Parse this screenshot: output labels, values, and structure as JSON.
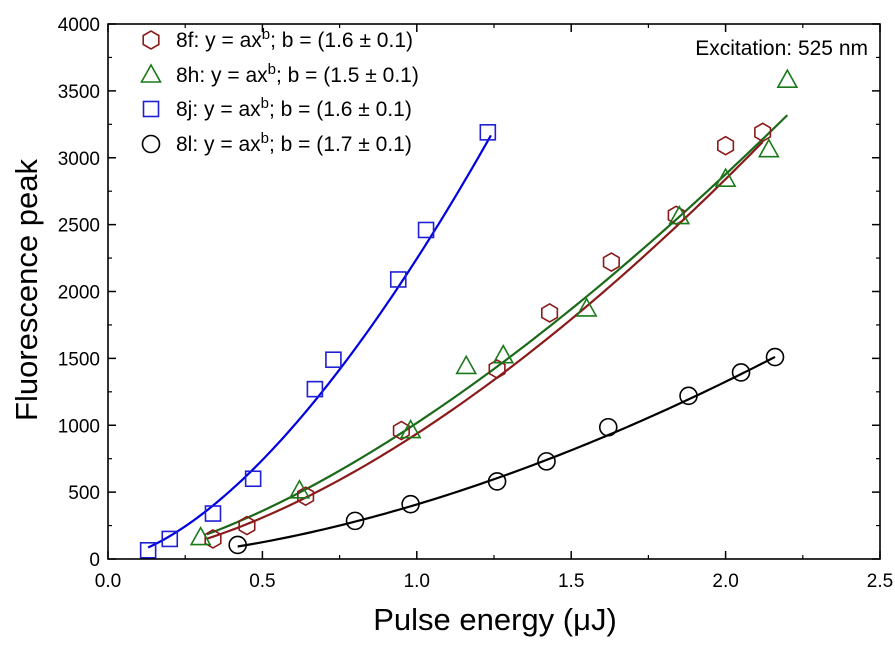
{
  "chart_data": {
    "type": "scatter",
    "xlabel": "Pulse energy (μJ)",
    "ylabel": "Fluorescence peak",
    "xlim": [
      0.0,
      2.5
    ],
    "ylim": [
      0,
      4000
    ],
    "x_ticks": [
      0.0,
      0.5,
      1.0,
      1.5,
      2.0,
      2.5
    ],
    "x_tick_labels": [
      "0.0",
      "0.5",
      "1.0",
      "1.5",
      "2.0",
      "2.5"
    ],
    "y_ticks": [
      0,
      500,
      1000,
      1500,
      2000,
      2500,
      3000,
      3500,
      4000
    ],
    "y_tick_labels": [
      "0",
      "500",
      "1000",
      "1500",
      "2000",
      "2500",
      "3000",
      "3500",
      "4000"
    ],
    "annotation": "Excitation: 525 nm",
    "legend_position": "top-left",
    "grid": false,
    "series": [
      {
        "name": "8f",
        "label_prefix": "8f:",
        "fit_text": "y = ax",
        "fit_exp": "b",
        "fit_suffix": "; b = (1.6 ± 0.1)",
        "marker": "hexagon",
        "color": "#8b1a1a",
        "fit_color": "#8b1a1a",
        "fit_a": 937,
        "fit_b": 1.6,
        "fit_range": [
          0.32,
          2.12
        ],
        "points": [
          [
            0.34,
            150
          ],
          [
            0.45,
            250
          ],
          [
            0.64,
            470
          ],
          [
            0.95,
            960
          ],
          [
            1.26,
            1420
          ],
          [
            1.43,
            1840
          ],
          [
            1.63,
            2220
          ],
          [
            1.84,
            2570
          ],
          [
            2.0,
            3090
          ],
          [
            2.12,
            3190
          ]
        ]
      },
      {
        "name": "8h",
        "label_prefix": "8h:",
        "fit_text": "y = ax",
        "fit_exp": "b",
        "fit_suffix": "; b = (1.5 ± 0.1)",
        "marker": "triangle",
        "color": "#1a7a1a",
        "fit_color": "#1a6a1a",
        "fit_a": 1017,
        "fit_b": 1.5,
        "fit_range": [
          0.32,
          2.2
        ],
        "points": [
          [
            0.3,
            160
          ],
          [
            0.62,
            510
          ],
          [
            0.98,
            960
          ],
          [
            1.16,
            1440
          ],
          [
            1.28,
            1520
          ],
          [
            1.55,
            1870
          ],
          [
            1.85,
            2560
          ],
          [
            2.0,
            2840
          ],
          [
            2.14,
            3060
          ],
          [
            2.2,
            3580
          ]
        ]
      },
      {
        "name": "8j",
        "label_prefix": "8j:",
        "fit_text": "y = ax",
        "fit_exp": "b",
        "fit_suffix": "; b = (1.6 ± 0.1)",
        "marker": "square",
        "color": "#1f1fd6",
        "fit_color": "#0000e0",
        "fit_a": 2245,
        "fit_b": 1.6,
        "fit_range": [
          0.13,
          1.24
        ],
        "points": [
          [
            0.13,
            65
          ],
          [
            0.2,
            150
          ],
          [
            0.34,
            340
          ],
          [
            0.47,
            600
          ],
          [
            0.67,
            1270
          ],
          [
            0.73,
            1490
          ],
          [
            0.94,
            2090
          ],
          [
            1.03,
            2460
          ],
          [
            1.23,
            3190
          ]
        ]
      },
      {
        "name": "8l",
        "label_prefix": "8l:",
        "fit_text": "y = ax",
        "fit_exp": "b",
        "fit_suffix": "; b = (1.7 ± 0.1)",
        "marker": "circle",
        "color": "#000000",
        "fit_color": "#000000",
        "fit_a": 408,
        "fit_b": 1.7,
        "fit_range": [
          0.42,
          2.16
        ],
        "points": [
          [
            0.42,
            105
          ],
          [
            0.8,
            285
          ],
          [
            0.98,
            410
          ],
          [
            1.26,
            580
          ],
          [
            1.42,
            730
          ],
          [
            1.62,
            985
          ],
          [
            1.88,
            1220
          ],
          [
            2.05,
            1395
          ],
          [
            2.16,
            1510
          ]
        ]
      }
    ]
  }
}
